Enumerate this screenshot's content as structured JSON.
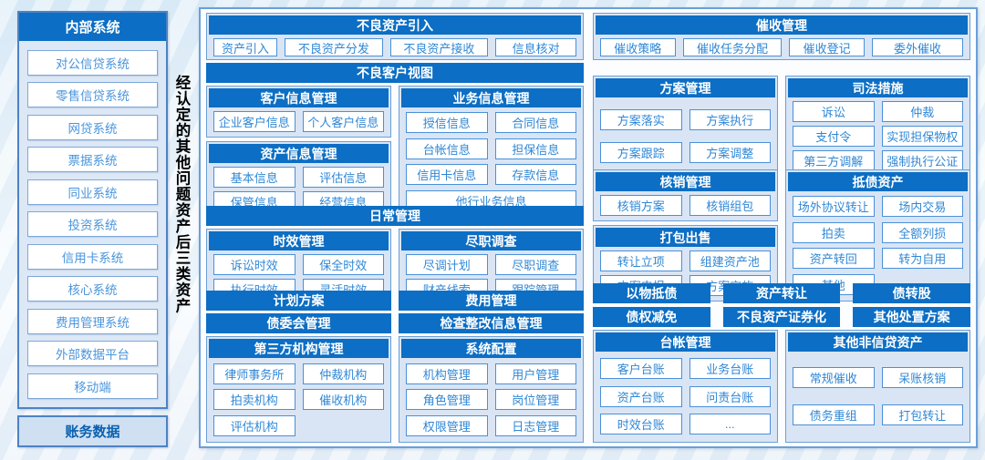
{
  "colors": {
    "header_blue": "#0c6ec4",
    "panel_bg": "#d9e5f4",
    "item_text_blue": "#2f87d6",
    "item_border_blue": "#4a90d9",
    "annotation_text": "#000000"
  },
  "sidebar": {
    "title": "内部系统",
    "items": [
      "对公信贷系统",
      "零售信贷系统",
      "网贷系统",
      "票据系统",
      "同业系统",
      "投资系统",
      "信用卡系统",
      "核心系统",
      "费用管理系统",
      "外部数据平台",
      "移动端"
    ],
    "footer": "账务数据"
  },
  "vertical_note": "经认定的其他问题资产后三类资产",
  "main": {
    "asset_intake": {
      "title": "不良资产引入",
      "items": [
        "资产引入",
        "不良资产分发",
        "不良资产接收",
        "信息核对"
      ]
    },
    "customer_view": {
      "title": "不良客户视图",
      "customer_info": {
        "title": "客户信息管理",
        "items": [
          "企业客户信息",
          "个人客户信息"
        ]
      },
      "asset_info": {
        "title": "资产信息管理",
        "items": [
          "基本信息",
          "评估信息",
          "保管信息",
          "经营信息"
        ]
      },
      "business_info": {
        "title": "业务信息管理",
        "items": [
          "授信信息",
          "合同信息",
          "台帐信息",
          "担保信息",
          "信用卡信息",
          "存款信息"
        ],
        "wide_item": "他行业务信息"
      }
    },
    "daily_mgmt": {
      "title": "日常管理",
      "limitation": {
        "title": "时效管理",
        "items": [
          "诉讼时效",
          "保全时效",
          "执行时效",
          "灵活时效"
        ]
      },
      "due_diligence": {
        "title": "尽职调查",
        "items": [
          "尽调计划",
          "尽职调查",
          "财产线索",
          "跟踪管理"
        ]
      }
    },
    "left_bars": [
      "计划方案",
      "费用管理",
      "债委会管理",
      "检查整改信息管理"
    ],
    "third_party": {
      "title": "第三方机构管理",
      "items": [
        "律师事务所",
        "仲裁机构",
        "拍卖机构",
        "催收机构",
        "评估机构"
      ]
    },
    "system_config": {
      "title": "系统配置",
      "items": [
        "机构管理",
        "用户管理",
        "角色管理",
        "岗位管理",
        "权限管理",
        "日志管理"
      ]
    },
    "collection": {
      "title": "催收管理",
      "items": [
        "催收策略",
        "催收任务分配",
        "催收登记",
        "委外催收"
      ]
    },
    "plan_mgmt": {
      "title": "方案管理",
      "items": [
        "方案落实",
        "方案执行",
        "方案跟踪",
        "方案调整"
      ]
    },
    "judicial": {
      "title": "司法措施",
      "items": [
        "诉讼",
        "仲裁",
        "支付令",
        "实现担保物权",
        "第三方调解",
        "强制执行公证"
      ]
    },
    "writeoff": {
      "title": "核销管理",
      "items": [
        "核销方案",
        "核销组包"
      ]
    },
    "package_sale": {
      "title": "打包出售",
      "items": [
        "转让立项",
        "组建资产池",
        "方案申报",
        "方案实施"
      ]
    },
    "debt_assets": {
      "title": "抵债资产",
      "items": [
        "场外协议转让",
        "场内交易",
        "拍卖",
        "全额列损",
        "资产转回",
        "转为自用",
        "其他"
      ]
    },
    "disposal_bars": [
      "以物抵债",
      "资产转让",
      "债转股",
      "债权减免",
      "不良资产证券化",
      "其他处置方案"
    ],
    "ledger": {
      "title": "台帐管理",
      "items": [
        "客户台账",
        "业务台账",
        "资产台账",
        "问责台账",
        "时效台账",
        "..."
      ]
    },
    "other_noncredit": {
      "title": "其他非信贷资产",
      "items": [
        "常规催收",
        "呆账核销",
        "债务重组",
        "打包转让"
      ]
    }
  }
}
